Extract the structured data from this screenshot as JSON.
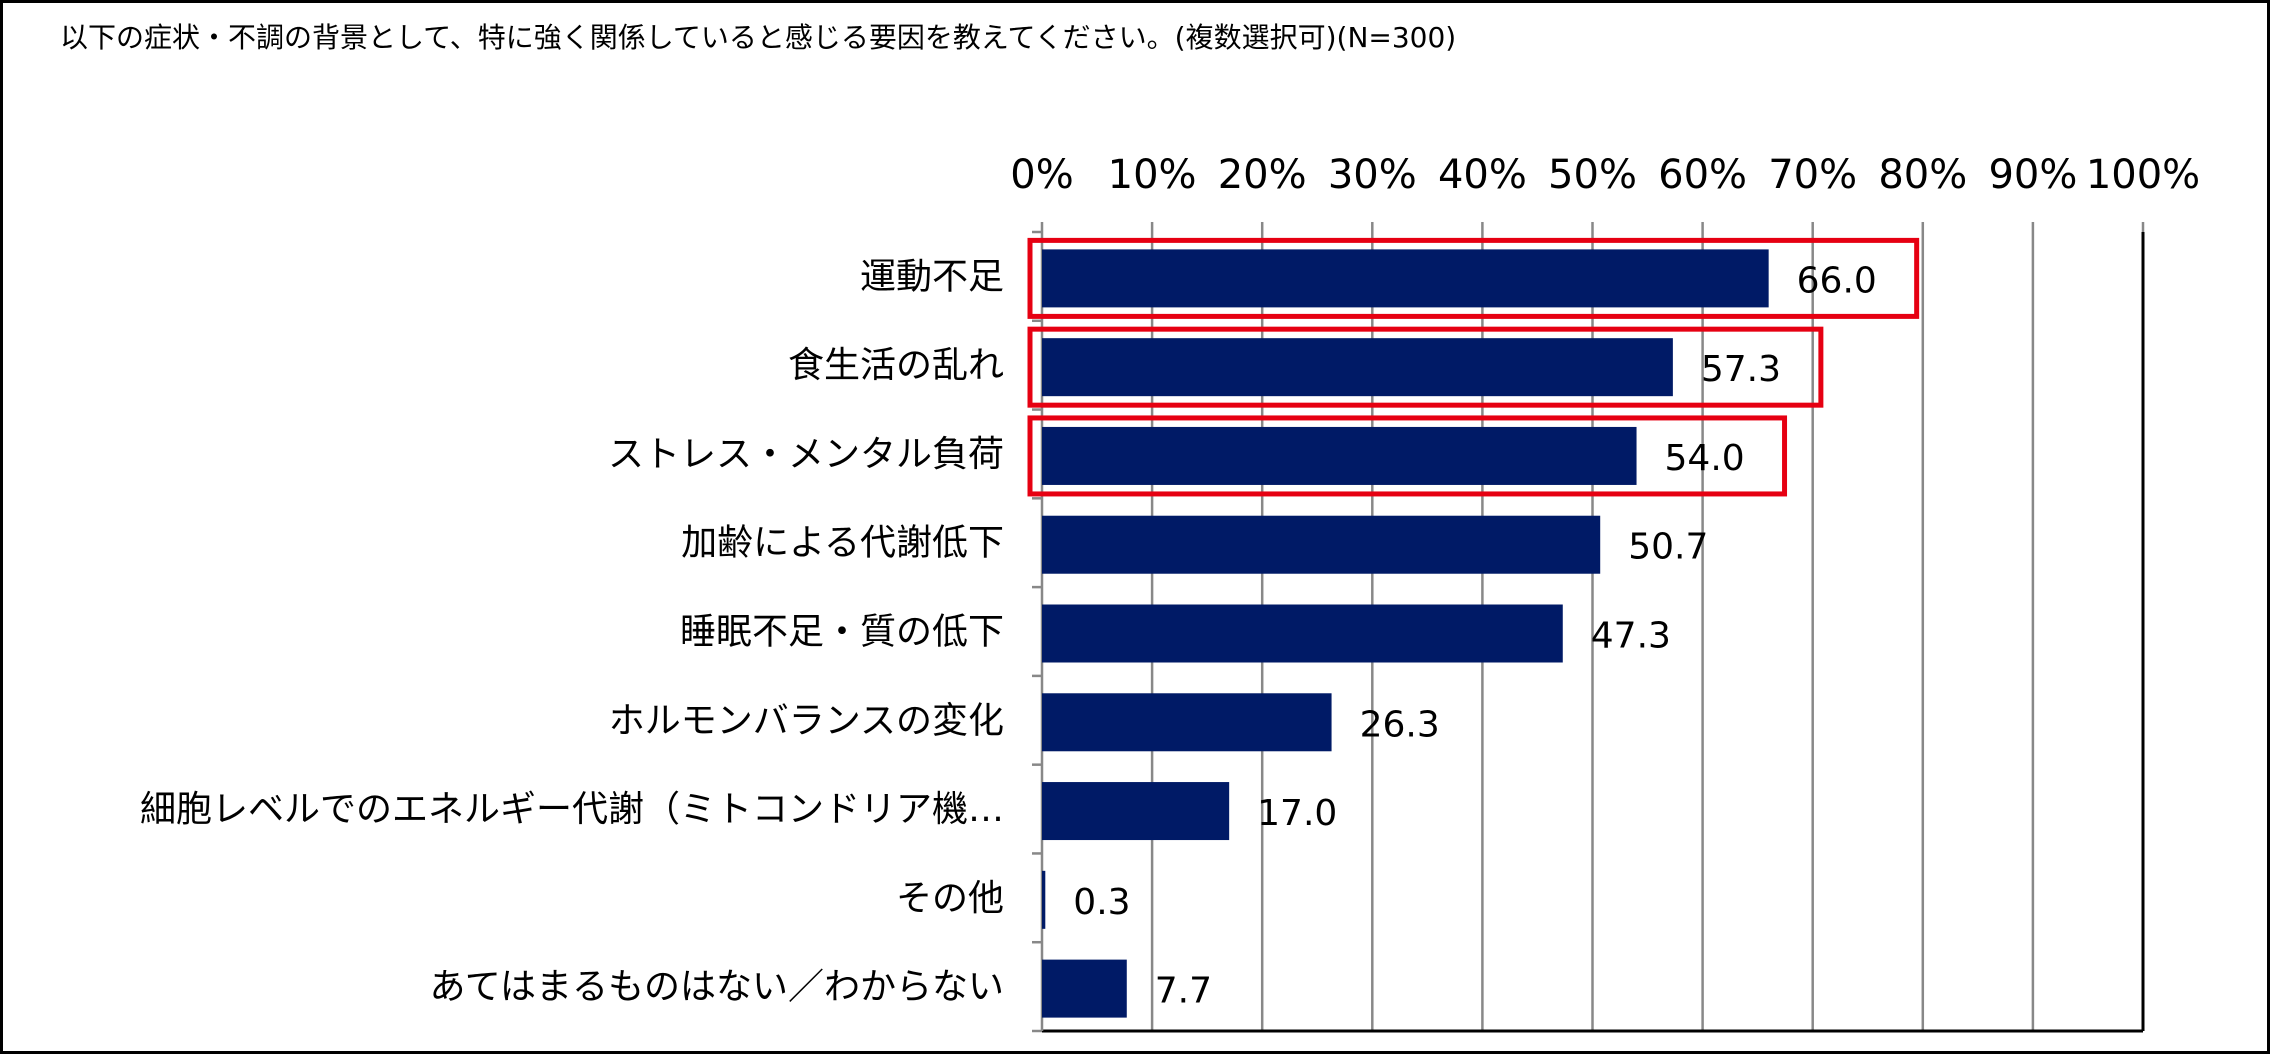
{
  "chart_data": {
    "type": "barh",
    "title": "以下の症状・不調の背景として、特に強く関係していると感じる要因を教えてください。(複数選択可)(N=300)",
    "categories": [
      "運動不足",
      "食生活の乱れ",
      "ストレス・メンタル負荷",
      "加齢による代謝低下",
      "睡眠不足・質の低下",
      "ホルモンバランスの変化",
      "細胞レベルでのエネルギー代謝（ミトコンドリア機…",
      "その他",
      "あてはまるものはない／わからない"
    ],
    "values": [
      66.0,
      57.3,
      54.0,
      50.7,
      47.3,
      26.3,
      17.0,
      0.3,
      7.7
    ],
    "value_labels": [
      "66.0",
      "57.3",
      "54.0",
      "50.7",
      "47.3",
      "26.3",
      "17.0",
      "0.3",
      "7.7"
    ],
    "color": "#001a66",
    "xlim": [
      0,
      100
    ],
    "xticks": [
      {
        "value": 0,
        "label": "0%"
      },
      {
        "value": 10,
        "label": "10%"
      },
      {
        "value": 20,
        "label": "20%"
      },
      {
        "value": 30,
        "label": "30%"
      },
      {
        "value": 40,
        "label": "40%"
      },
      {
        "value": 50,
        "label": "50%"
      },
      {
        "value": 60,
        "label": "60%"
      },
      {
        "value": 70,
        "label": "70%"
      },
      {
        "value": 80,
        "label": "80%"
      },
      {
        "value": 90,
        "label": "90%"
      },
      {
        "value": 100,
        "label": "100%"
      }
    ],
    "grid": true,
    "highlighted": [
      0,
      1,
      2
    ],
    "highlight_color": "#e60012"
  }
}
